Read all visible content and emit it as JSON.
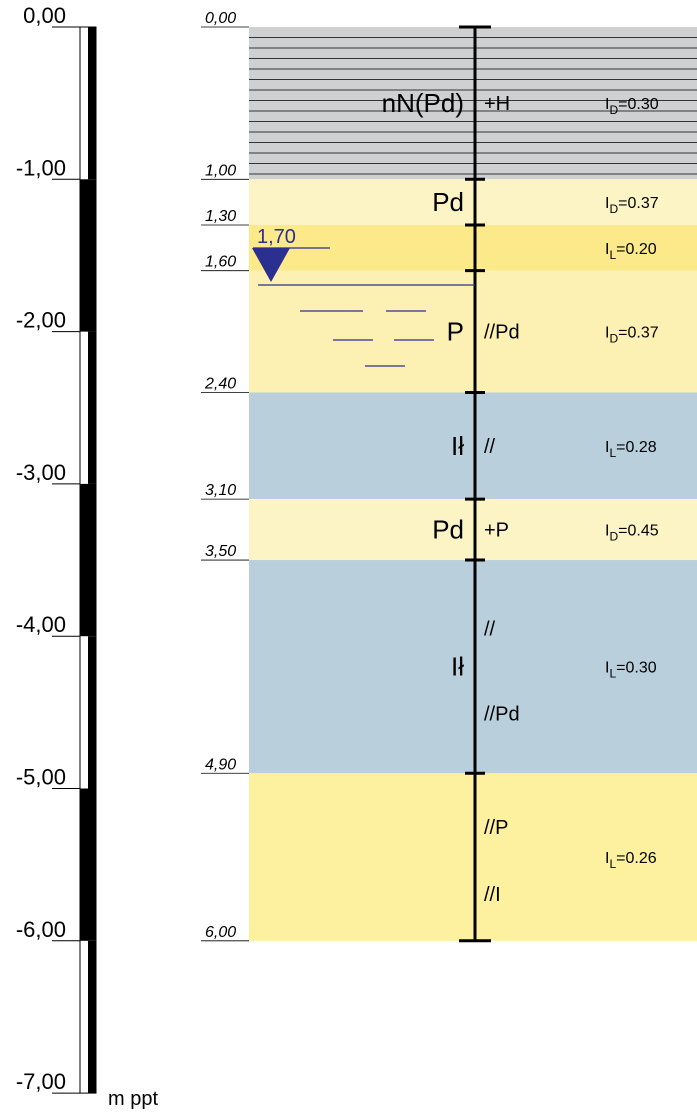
{
  "unit": "m ppt",
  "scale": {
    "labels": [
      "0,00",
      "-1,00",
      "-2,00",
      "-3,00",
      "-4,00",
      "-5,00",
      "-6,00",
      "-7,00"
    ]
  },
  "groundwater": {
    "label": "1,70",
    "depth": 1.7,
    "color": "#2b2f8f"
  },
  "colors": {
    "gray": "#cfd0d2",
    "light_yellow": "#fdf4c6",
    "yellow": "#fbe98a",
    "pale_yellow": "#fcf0b3",
    "blue": "#b9cfdb",
    "medium_yellow": "#fdf1a0"
  },
  "layers": [
    {
      "top": 0.0,
      "bottom": 1.0,
      "top_label": "0,00",
      "fill": "gray",
      "hatched": true,
      "soil": "nN(Pd)",
      "admix": [
        "+H"
      ],
      "param_base": "I",
      "param_sub": "D",
      "param_val": "=0.30"
    },
    {
      "top": 1.0,
      "bottom": 1.3,
      "top_label": "1,00",
      "fill": "light_yellow",
      "hatched": false,
      "soil": "Pd",
      "admix": [],
      "param_base": "I",
      "param_sub": "D",
      "param_val": "=0.37"
    },
    {
      "top": 1.3,
      "bottom": 1.6,
      "top_label": "1,30",
      "fill": "yellow",
      "hatched": false,
      "soil": "",
      "admix": [],
      "param_base": "I",
      "param_sub": "L",
      "param_val": "=0.20"
    },
    {
      "top": 1.6,
      "bottom": 2.4,
      "top_label": "1,60",
      "fill": "pale_yellow",
      "hatched": false,
      "soil": "P",
      "admix": [
        "//Pd"
      ],
      "param_base": "I",
      "param_sub": "D",
      "param_val": "=0.37"
    },
    {
      "top": 2.4,
      "bottom": 3.1,
      "top_label": "2,40",
      "fill": "blue",
      "hatched": false,
      "soil": "Ił",
      "admix": [
        "//"
      ],
      "param_base": "I",
      "param_sub": "L",
      "param_val": "=0.28"
    },
    {
      "top": 3.1,
      "bottom": 3.5,
      "top_label": "3,10",
      "fill": "light_yellow",
      "hatched": false,
      "soil": "Pd",
      "admix": [
        "+P"
      ],
      "param_base": "I",
      "param_sub": "D",
      "param_val": "=0.45"
    },
    {
      "top": 3.5,
      "bottom": 4.9,
      "top_label": "3,50",
      "fill": "blue",
      "hatched": false,
      "soil": "Ił",
      "admix": [
        "//",
        "//Pd"
      ],
      "param_base": "I",
      "param_sub": "L",
      "param_val": "=0.30"
    },
    {
      "top": 4.9,
      "bottom": 6.0,
      "top_label": "4,90",
      "fill": "medium_yellow",
      "hatched": false,
      "soil": "",
      "admix": [
        "//P",
        "//I"
      ],
      "param_base": "I",
      "param_sub": "L",
      "param_val": "=0.26"
    }
  ],
  "bottom_label": "6,00",
  "bottom_depth": 6.0
}
